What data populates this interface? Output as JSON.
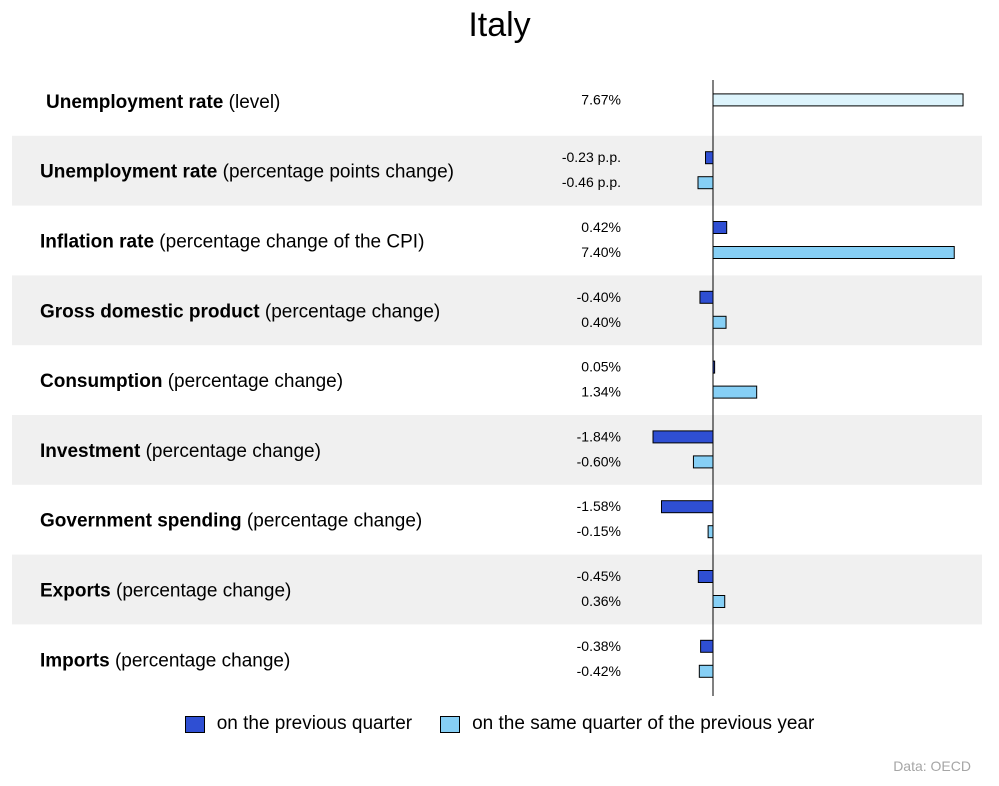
{
  "title": "Italy",
  "source": "Data: OECD",
  "colors": {
    "quarter": "#2f4fd3",
    "year": "#86cff5",
    "year_first_row": "#ddf4fc",
    "band": "#f0f0f0"
  },
  "legend": {
    "quarter": "on the previous quarter",
    "year": "on the same quarter of the previous year"
  },
  "chart_data": {
    "type": "bar",
    "orientation": "horizontal",
    "title": "Italy",
    "series": [
      {
        "name": "on the previous quarter"
      },
      {
        "name": "on the same quarter of the previous year"
      }
    ],
    "rows": [
      {
        "bold": "Unemployment rate",
        "rest": " (level)",
        "bars": [
          {
            "series": 1,
            "value": 7.67,
            "label": "7.67%"
          }
        ]
      },
      {
        "bold": "Unemployment rate",
        "rest": " (percentage points change)",
        "bars": [
          {
            "series": 0,
            "value": -0.23,
            "label": "-0.23 p.p."
          },
          {
            "series": 1,
            "value": -0.46,
            "label": "-0.46 p.p."
          }
        ]
      },
      {
        "bold": "Inflation rate",
        "rest": " (percentage change of the CPI)",
        "bars": [
          {
            "series": 0,
            "value": 0.42,
            "label": "0.42%"
          },
          {
            "series": 1,
            "value": 7.4,
            "label": "7.40%"
          }
        ]
      },
      {
        "bold": "Gross domestic product",
        "rest": " (percentage change)",
        "bars": [
          {
            "series": 0,
            "value": -0.4,
            "label": "-0.40%"
          },
          {
            "series": 1,
            "value": 0.4,
            "label": "0.40%"
          }
        ]
      },
      {
        "bold": "Consumption",
        "rest": " (percentage change)",
        "bars": [
          {
            "series": 0,
            "value": 0.05,
            "label": "0.05%"
          },
          {
            "series": 1,
            "value": 1.34,
            "label": "1.34%"
          }
        ]
      },
      {
        "bold": "Investment",
        "rest": " (percentage change)",
        "bars": [
          {
            "series": 0,
            "value": -1.84,
            "label": "-1.84%"
          },
          {
            "series": 1,
            "value": -0.6,
            "label": "-0.60%"
          }
        ]
      },
      {
        "bold": "Government spending",
        "rest": " (percentage change)",
        "bars": [
          {
            "series": 0,
            "value": -1.58,
            "label": "-1.58%"
          },
          {
            "series": 1,
            "value": -0.15,
            "label": "-0.15%"
          }
        ]
      },
      {
        "bold": "Exports",
        "rest": " (percentage change)",
        "bars": [
          {
            "series": 0,
            "value": -0.45,
            "label": "-0.45%"
          },
          {
            "series": 1,
            "value": 0.36,
            "label": "0.36%"
          }
        ]
      },
      {
        "bold": "Imports",
        "rest": " (percentage change)",
        "bars": [
          {
            "series": 0,
            "value": -0.38,
            "label": "-0.38%"
          },
          {
            "series": 1,
            "value": -0.42,
            "label": "-0.42%"
          }
        ]
      }
    ]
  }
}
